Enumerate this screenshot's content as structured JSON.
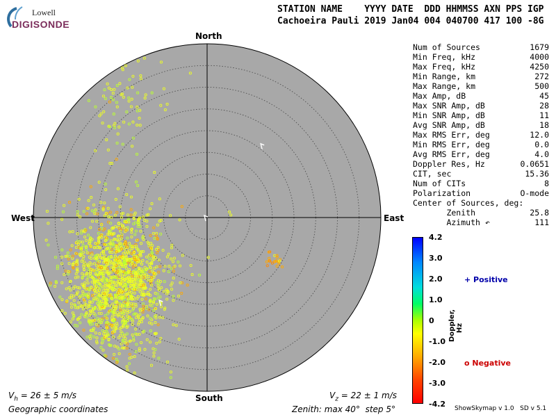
{
  "logo": {
    "line1": "Lowell",
    "line2": "DIGISONDE"
  },
  "header": {
    "line1": "STATION NAME    YYYY DATE  DDD HHMMSS AXN PPS IGP",
    "line2": "Cachoeira Pauli 2019 Jan04 004 040700 417 100 -8G"
  },
  "stats": [
    {
      "label": "Num of Sources",
      "value": "1679"
    },
    {
      "label": "Min Freq, kHz",
      "value": "4000"
    },
    {
      "label": "Max Freq, kHz",
      "value": "4250"
    },
    {
      "label": "Min Range, km",
      "value": "272"
    },
    {
      "label": "Max Range, km",
      "value": "500"
    },
    {
      "label": "Max Amp, dB",
      "value": "45"
    },
    {
      "label": "Max SNR Amp, dB",
      "value": "28"
    },
    {
      "label": "Min SNR Amp, dB",
      "value": "11"
    },
    {
      "label": "Avg SNR Amp, dB",
      "value": "18"
    },
    {
      "label": "Max RMS Err, deg",
      "value": "12.0"
    },
    {
      "label": "Min RMS Err, deg",
      "value": "0.0"
    },
    {
      "label": "Avg RMS Err, deg",
      "value": "4.0"
    },
    {
      "label": "Doppler Res, Hz",
      "value": "0.0651"
    },
    {
      "label": "CIT, sec",
      "value": "15.36"
    },
    {
      "label": "Num of CITs",
      "value": "8"
    },
    {
      "label": "Polarization",
      "value": "O-mode"
    },
    {
      "label": "Center of Sources, deg:",
      "value": ""
    },
    {
      "label": "       Zenith",
      "value": "25.8"
    },
    {
      "label": "       Azimuth ↶",
      "value": "111"
    }
  ],
  "directions": {
    "north": "North",
    "south": "South",
    "east": "East",
    "west": "West"
  },
  "footer": {
    "vh_prefix": "V",
    "vh_sub": "h",
    "vh_text": " = 26 ± 5 m/s",
    "vz_prefix": "V",
    "vz_sub": "z",
    "vz_text": " = 22 ± 1 m/s",
    "coords": "Geographic coordinates",
    "zenith": "Zenith: max 40°  step 5°",
    "version": "ShowSkymap v 1.0   SD v 5.1"
  },
  "colorbar": {
    "label": "Doppler, Hz",
    "ticks": [
      "4.2",
      "3.0",
      "2.0",
      "1.0",
      "0",
      "-1.0",
      "-2.0",
      "-3.0",
      "-4.2"
    ],
    "positive": "+ Positive",
    "negative": "o Negative"
  },
  "colors": {
    "disk": "#a8a8a8",
    "pos_marker": "#0000aa",
    "neg_marker": "#cc0000"
  },
  "chart_data": {
    "type": "scatter",
    "projection": "polar sky map",
    "rmax_deg": 40,
    "ring_step_deg": 5,
    "clusters": [
      {
        "name": "",
        "azimuth_deg": 237,
        "zenith_deg": 25,
        "spread_deg": 6,
        "count": 1300,
        "doppler_hz": -0.8
      },
      {
        "name": "",
        "azimuth_deg": 225,
        "zenith_deg": 32,
        "spread_deg": 7,
        "count": 260,
        "doppler_hz": -0.5
      },
      {
        "name": "",
        "azimuth_deg": 325,
        "zenith_deg": 33,
        "spread_deg": 5,
        "count": 90,
        "doppler_hz": -0.6
      },
      {
        "name": "",
        "azimuth_deg": 124,
        "zenith_deg": 18.5,
        "spread_deg": 1.2,
        "count": 20,
        "doppler_hz": -1.6
      }
    ],
    "extra_points": [
      {
        "az": 84,
        "zen": 5.5,
        "doppler_hz": -0.6
      },
      {
        "az": 76,
        "zen": 5.3,
        "doppler_hz": -0.6
      }
    ],
    "arrows": [
      {
        "az": 36,
        "zen": 21
      },
      {
        "az": 306,
        "zen": 0.8
      },
      {
        "az": 210,
        "zen": 22
      }
    ]
  }
}
